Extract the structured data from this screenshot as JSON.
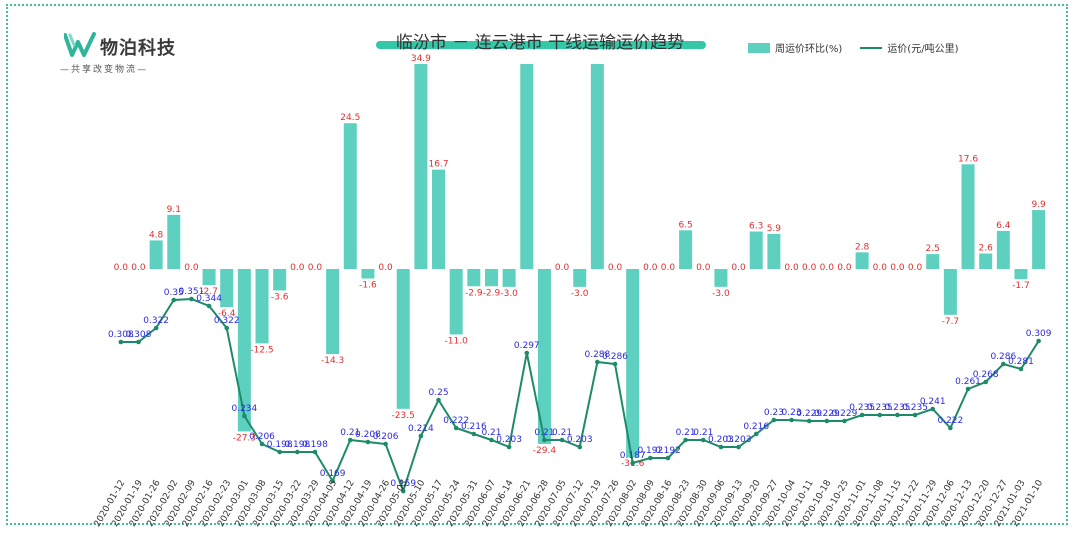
{
  "logo": {
    "name": "物泊科技",
    "slogan": "—共享改变物流—"
  },
  "chart_data": {
    "type": "bar+line",
    "title": "临汾市 － 连云港市 干线运输运价趋势",
    "legend": [
      "周运价环比(%)",
      "运价(元/吨公里)"
    ],
    "legend_placement": "top-right",
    "categories": [
      "2020-01-12",
      "2020-01-19",
      "2020-01-26",
      "2020-02-02",
      "2020-02-09",
      "2020-02-16",
      "2020-02-23",
      "2020-03-01",
      "2020-03-08",
      "2020-03-15",
      "2020-03-22",
      "2020-03-29",
      "2020-04-05",
      "2020-04-12",
      "2020-04-19",
      "2020-04-26",
      "2020-05-03",
      "2020-05-10",
      "2020-05-17",
      "2020-05-24",
      "2020-05-31",
      "2020-06-07",
      "2020-06-14",
      "2020-06-21",
      "2020-06-28",
      "2020-07-05",
      "2020-07-12",
      "2020-07-19",
      "2020-07-26",
      "2020-08-02",
      "2020-08-09",
      "2020-08-16",
      "2020-08-23",
      "2020-08-30",
      "2020-09-06",
      "2020-09-13",
      "2020-09-20",
      "2020-09-27",
      "2020-10-04",
      "2020-10-11",
      "2020-10-18",
      "2020-10-25",
      "2020-11-01",
      "2020-11-08",
      "2020-11-15",
      "2020-11-22",
      "2020-11-29",
      "2020-12-06",
      "2020-12-13",
      "2020-12-20",
      "2020-12-27",
      "2021-01-03",
      "2021-01-10"
    ],
    "series": [
      {
        "name": "周运价环比(%)",
        "kind": "bar",
        "color": "#5ed0bf",
        "values": [
          0.0,
          0.0,
          4.8,
          9.1,
          0.0,
          -2.7,
          -6.4,
          -27.3,
          -12.5,
          -3.6,
          0.0,
          0.0,
          -14.3,
          24.5,
          -1.6,
          0.0,
          -23.5,
          34.9,
          16.7,
          -11.0,
          -2.9,
          -2.9,
          -3.0,
          40.0,
          -29.4,
          0.0,
          -3.0,
          40.0,
          0.0,
          -31.6,
          0.0,
          0.0,
          6.5,
          0.0,
          -3.0,
          0.0,
          6.3,
          5.9,
          0.0,
          0.0,
          0.0,
          0.0,
          2.8,
          0.0,
          0.0,
          0.0,
          2.5,
          -7.7,
          17.6,
          2.6,
          6.4,
          -1.7,
          9.9
        ],
        "labels": [
          "0.0",
          "0.0",
          "4.8",
          "9.1",
          "0.0",
          "-2.7",
          "-6.4",
          "-27.3",
          "-12.5",
          "-3.6",
          "0.0",
          "0.0",
          "-14.3",
          "24.5",
          "-1.6",
          "0.0",
          "-23.5",
          "34.9",
          "16.7",
          "-11.0",
          "-2.9",
          "-2.9",
          "-3.0",
          "",
          "-29.4",
          "0.0",
          "-3.0",
          "",
          "0.0",
          "-31.6",
          "0.0",
          "0.0",
          "6.5",
          "0.0",
          "-3.0",
          "0.0",
          "6.3",
          "5.9",
          "0.0",
          "0.0",
          "0.0",
          "0.0",
          "2.8",
          "0.0",
          "0.0",
          "0.0",
          "2.5",
          "-7.7",
          "17.6",
          "2.6",
          "6.4",
          "-1.7",
          "9.9"
        ]
      },
      {
        "name": "运价(元/吨公里)",
        "kind": "line",
        "color": "#1e8a6a",
        "values": [
          0.308,
          0.308,
          0.322,
          0.35,
          0.351,
          0.344,
          0.322,
          0.234,
          0.206,
          0.198,
          0.198,
          0.198,
          0.169,
          0.21,
          0.208,
          0.206,
          0.159,
          0.214,
          0.25,
          0.222,
          0.216,
          0.21,
          0.203,
          0.297,
          0.21,
          0.21,
          0.203,
          0.288,
          0.286,
          0.187,
          0.192,
          0.192,
          0.21,
          0.21,
          0.203,
          0.203,
          0.216,
          0.23,
          0.23,
          0.229,
          0.229,
          0.229,
          0.235,
          0.235,
          0.235,
          0.235,
          0.241,
          0.222,
          0.261,
          0.268,
          0.286,
          0.281,
          0.309
        ],
        "labels": [
          "0.308",
          "0.308",
          "0.322",
          "0.35",
          "0.351",
          "0.344",
          "0.322",
          "0.234",
          "0.206",
          "0.198",
          "0.198",
          "0.198",
          "0.169",
          "0.21",
          "0.208",
          "0.206",
          "0.159",
          "0.214",
          "0.25",
          "0.222",
          "0.216",
          "0.21",
          "0.203",
          "0.297",
          "0.21",
          "0.21",
          "0.203",
          "0.288",
          "0.286",
          "0.187",
          "0.192",
          "0.192",
          "0.21",
          "0.21",
          "0.203",
          "0.203",
          "0.216",
          "0.23",
          "0.23",
          "0.229",
          "0.229",
          "0.229",
          "0.235",
          "0.235",
          "0.235",
          "0.235",
          "0.241",
          "0.222",
          "0.261",
          "0.268",
          "0.286",
          "0.281",
          "0.309"
        ]
      }
    ]
  }
}
